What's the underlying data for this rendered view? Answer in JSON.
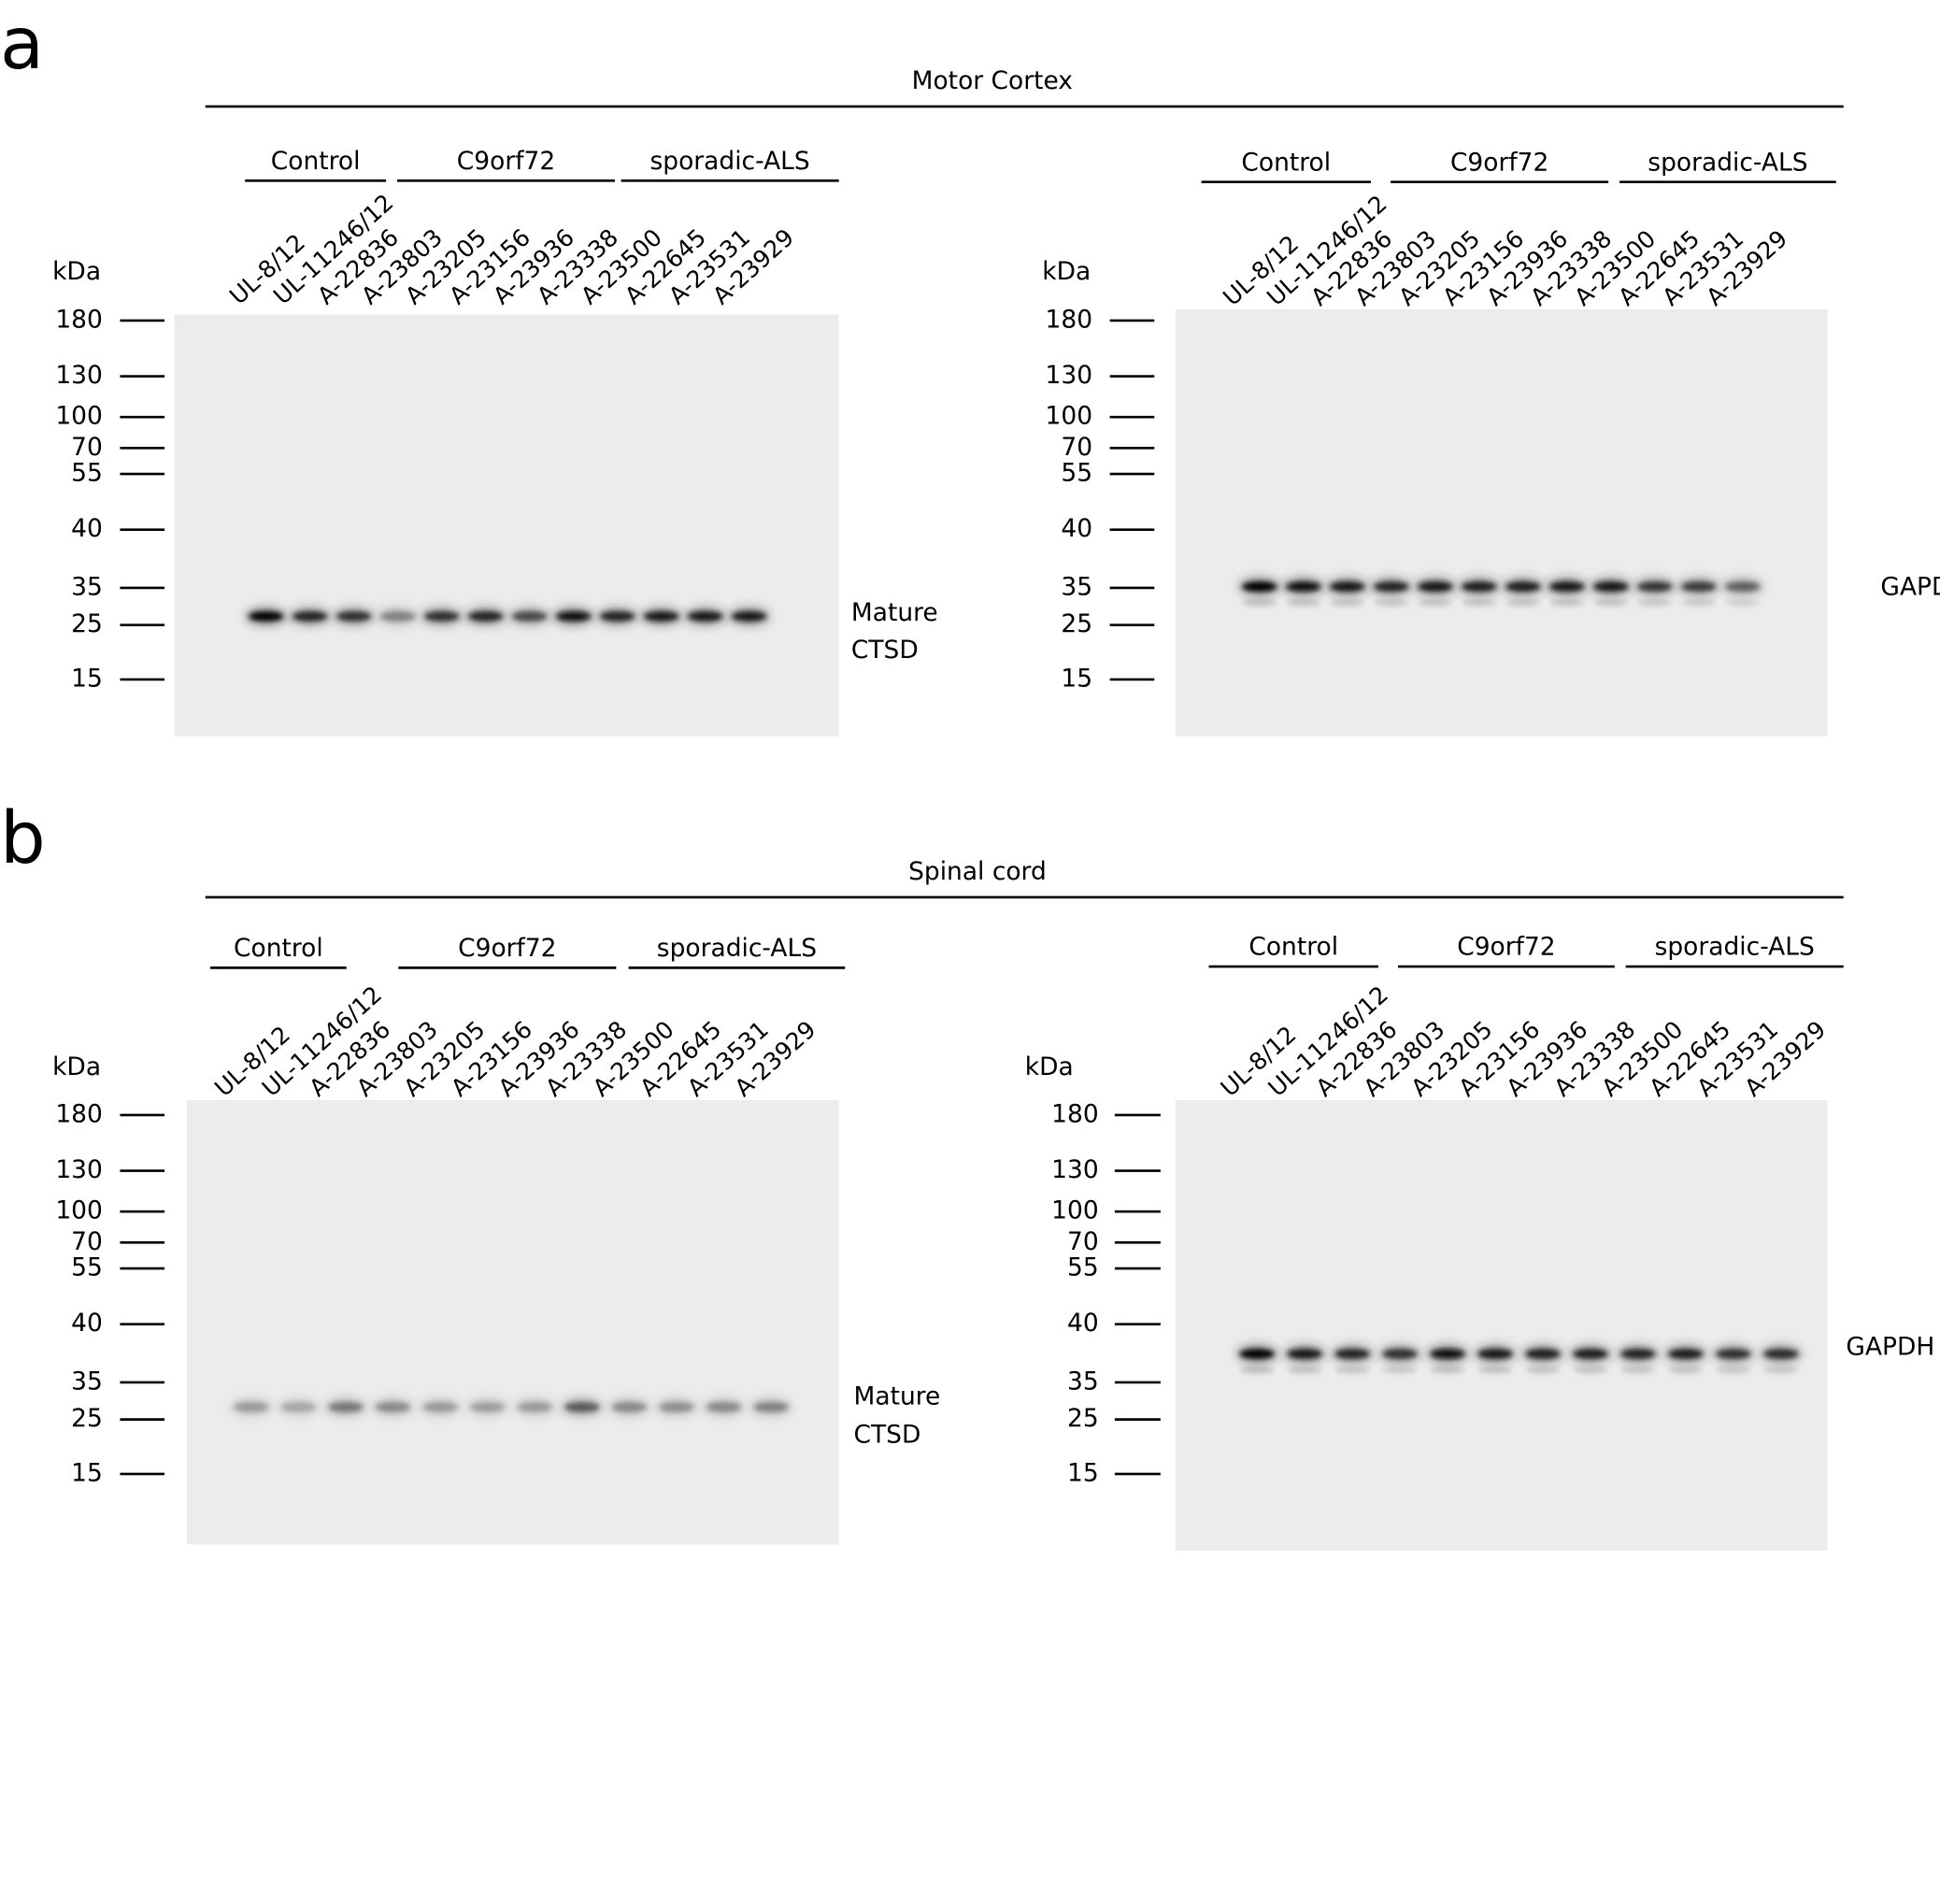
{
  "panels": [
    {
      "letter": "a",
      "title": "Motor Cortex",
      "blots": [
        {
          "groups": [
            "Control",
            "C9orf72",
            "sporadic-ALS"
          ],
          "lanes": [
            "UL-8/12",
            "UL-11246/12",
            "A-22836",
            "A-23803",
            "A-23205",
            "A-23156",
            "A-23936",
            "A-23338",
            "A-23500",
            "A-22645",
            "A-23531",
            "A-23929"
          ],
          "unit": "kDa",
          "markers": [
            "180",
            "130",
            "100",
            "70",
            "55",
            "40",
            "35",
            "25",
            "15"
          ],
          "band_label": [
            "Mature",
            "CTSD"
          ]
        },
        {
          "groups": [
            "Control",
            "C9orf72",
            "sporadic-ALS"
          ],
          "lanes": [
            "UL-8/12",
            "UL-11246/12",
            "A-22836",
            "A-23803",
            "A-23205",
            "A-23156",
            "A-23936",
            "A-23338",
            "A-23500",
            "A-22645",
            "A-23531",
            "A-23929"
          ],
          "unit": "kDa",
          "markers": [
            "180",
            "130",
            "100",
            "70",
            "55",
            "40",
            "35",
            "25",
            "15"
          ],
          "band_label": [
            "GAPDH"
          ]
        }
      ]
    },
    {
      "letter": "b",
      "title": "Spinal cord",
      "blots": [
        {
          "groups": [
            "Control",
            "C9orf72",
            "sporadic-ALS"
          ],
          "lanes": [
            "UL-8/12",
            "UL-11246/12",
            "A-22836",
            "A-23803",
            "A-23205",
            "A-23156",
            "A-23936",
            "A-23338",
            "A-23500",
            "A-22645",
            "A-23531",
            "A-23929"
          ],
          "unit": "kDa",
          "markers": [
            "180",
            "130",
            "100",
            "70",
            "55",
            "40",
            "35",
            "25",
            "15"
          ],
          "band_label": [
            "Mature",
            "CTSD"
          ]
        },
        {
          "groups": [
            "Control",
            "C9orf72",
            "sporadic-ALS"
          ],
          "lanes": [
            "UL-8/12",
            "UL-11246/12",
            "A-22836",
            "A-23803",
            "A-23205",
            "A-23156",
            "A-23936",
            "A-23338",
            "A-23500",
            "A-22645",
            "A-23531",
            "A-23929"
          ],
          "unit": "kDa",
          "markers": [
            "180",
            "130",
            "100",
            "70",
            "55",
            "40",
            "35",
            "25",
            "15"
          ],
          "band_label": [
            "GAPDH"
          ]
        }
      ]
    }
  ]
}
